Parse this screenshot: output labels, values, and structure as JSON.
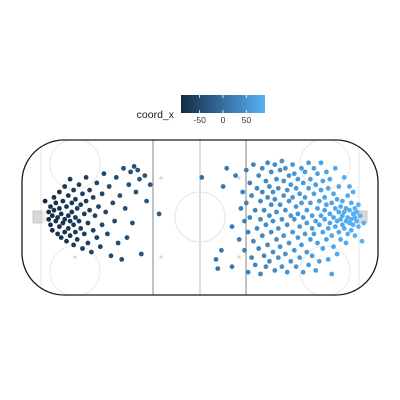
{
  "chart_data": {
    "type": "scatter",
    "title": "",
    "xlabel": "",
    "ylabel": "",
    "background": "hockey-rink",
    "xlim": [
      -100,
      100
    ],
    "ylim": [
      -42.5,
      42.5
    ],
    "legend": {
      "title": "coord_x",
      "position": "top",
      "ticks": [
        -50,
        0,
        50
      ],
      "range": [
        -90,
        90
      ],
      "color_low": "#132B43",
      "color_high": "#56B1F7"
    },
    "series": [
      {
        "points": [
          [
            -87,
            9
          ],
          [
            -85,
            3
          ],
          [
            -85,
            -1
          ],
          [
            -84,
            6
          ],
          [
            -84,
            -4
          ],
          [
            -83,
            1
          ],
          [
            -83,
            -7
          ],
          [
            -82,
            11
          ],
          [
            -82,
            4
          ],
          [
            -81,
            -2
          ],
          [
            -81,
            8
          ],
          [
            -80,
            -9
          ],
          [
            -80,
            0
          ],
          [
            -79,
            14
          ],
          [
            -79,
            5
          ],
          [
            -79,
            -5
          ],
          [
            -78,
            -11
          ],
          [
            -78,
            2
          ],
          [
            -77,
            9
          ],
          [
            -77,
            -3
          ],
          [
            -76,
            17
          ],
          [
            -76,
            -1
          ],
          [
            -76,
            -8
          ],
          [
            -75,
            6
          ],
          [
            -75,
            -13
          ],
          [
            -74,
            12
          ],
          [
            -74,
            1
          ],
          [
            -74,
            -6
          ],
          [
            -73,
            21
          ],
          [
            -73,
            -2
          ],
          [
            -73,
            -10
          ],
          [
            -72,
            8
          ],
          [
            -72,
            3
          ],
          [
            -71,
            -4
          ],
          [
            -71,
            15
          ],
          [
            -71,
            -15
          ],
          [
            -70,
            0
          ],
          [
            -70,
            10
          ],
          [
            -70,
            -8
          ],
          [
            -69,
            5
          ],
          [
            -69,
            -12
          ],
          [
            -68,
            18
          ],
          [
            -68,
            -2
          ],
          [
            -67,
            7
          ],
          [
            -67,
            -6
          ],
          [
            -66,
            13
          ],
          [
            -66,
            -17
          ],
          [
            -65,
            2
          ],
          [
            -65,
            -9
          ],
          [
            -64,
            22
          ],
          [
            -64,
            9
          ],
          [
            -63,
            -3
          ],
          [
            -63,
            -14
          ],
          [
            -62,
            15
          ],
          [
            -62,
            4
          ],
          [
            -61,
            -19
          ],
          [
            -60,
            11
          ],
          [
            -60,
            -7
          ],
          [
            -59,
            1
          ],
          [
            -58,
            19
          ],
          [
            -58,
            -11
          ],
          [
            -57,
            6
          ],
          [
            -56,
            -16
          ],
          [
            -55,
            13
          ],
          [
            -55,
            -4
          ],
          [
            -54,
            24
          ],
          [
            -53,
            3
          ],
          [
            -52,
            -9
          ],
          [
            -51,
            17
          ],
          [
            -50,
            -21
          ],
          [
            -49,
            8
          ],
          [
            -48,
            -2
          ],
          [
            -47,
            22
          ],
          [
            -46,
            -14
          ],
          [
            -45,
            12
          ],
          [
            -44,
            -23
          ],
          [
            -43,
            27
          ],
          [
            -42,
            5
          ],
          [
            -41,
            -11
          ],
          [
            -40,
            18
          ],
          [
            -39,
            25
          ],
          [
            -38,
            -3
          ],
          [
            -37,
            28
          ],
          [
            -36,
            14
          ],
          [
            -35,
            26
          ],
          [
            -34,
            21
          ],
          [
            -33,
            -20
          ],
          [
            -31,
            23
          ],
          [
            -30,
            9
          ],
          [
            -28,
            18
          ],
          [
            -23,
            2
          ],
          [
            1,
            22
          ],
          [
            9,
            -23
          ],
          [
            10,
            -28
          ],
          [
            12,
            -18
          ],
          [
            13,
            17
          ],
          [
            15,
            27
          ],
          [
            18,
            -5
          ],
          [
            18,
            -27
          ],
          [
            20,
            23
          ],
          [
            22,
            -12
          ],
          [
            23,
            5
          ],
          [
            24,
            14
          ],
          [
            25,
            -2
          ],
          [
            25,
            -18
          ],
          [
            26,
            26
          ],
          [
            26,
            8
          ],
          [
            27,
            -30
          ],
          [
            27,
            -8
          ],
          [
            28,
            19
          ],
          [
            28,
            0
          ],
          [
            29,
            -22
          ],
          [
            29,
            12
          ],
          [
            30,
            -13
          ],
          [
            30,
            29
          ],
          [
            31,
            4
          ],
          [
            31,
            -26
          ],
          [
            32,
            16
          ],
          [
            32,
            -6
          ],
          [
            33,
            23
          ],
          [
            33,
            -17
          ],
          [
            34,
            9
          ],
          [
            34,
            -1
          ],
          [
            34,
            -31
          ],
          [
            35,
            27
          ],
          [
            35,
            14
          ],
          [
            35,
            -10
          ],
          [
            36,
            -21
          ],
          [
            36,
            4
          ],
          [
            37,
            20
          ],
          [
            37,
            -4
          ],
          [
            37,
            -27
          ],
          [
            38,
            11
          ],
          [
            38,
            -15
          ],
          [
            38,
            30
          ],
          [
            39,
            1
          ],
          [
            39,
            -24
          ],
          [
            39,
            17
          ],
          [
            40,
            -8
          ],
          [
            40,
            25
          ],
          [
            40,
            7
          ],
          [
            41,
            -19
          ],
          [
            41,
            14
          ],
          [
            41,
            -2
          ],
          [
            42,
            29
          ],
          [
            42,
            -29
          ],
          [
            42,
            10
          ],
          [
            43,
            -12
          ],
          [
            43,
            21
          ],
          [
            43,
            3
          ],
          [
            44,
            -22
          ],
          [
            44,
            16
          ],
          [
            44,
            -6
          ],
          [
            45,
            26
          ],
          [
            45,
            -16
          ],
          [
            45,
            7
          ],
          [
            46,
            -1
          ],
          [
            46,
            31
          ],
          [
            46,
            -27
          ],
          [
            47,
            12
          ],
          [
            47,
            -10
          ],
          [
            47,
            20
          ],
          [
            48,
            -20
          ],
          [
            48,
            4
          ],
          [
            48,
            27
          ],
          [
            49,
            -4
          ],
          [
            49,
            15
          ],
          [
            49,
            -30
          ],
          [
            50,
            9
          ],
          [
            50,
            -14
          ],
          [
            50,
            23
          ],
          [
            51,
            -24
          ],
          [
            51,
            1
          ],
          [
            51,
            18
          ],
          [
            52,
            -8
          ],
          [
            52,
            29
          ],
          [
            52,
            11
          ],
          [
            53,
            -18
          ],
          [
            53,
            -1
          ],
          [
            53,
            24
          ],
          [
            54,
            6
          ],
          [
            54,
            -27
          ],
          [
            54,
            16
          ],
          [
            55,
            -11
          ],
          [
            55,
            21
          ],
          [
            55,
            2
          ],
          [
            56,
            -22
          ],
          [
            56,
            13
          ],
          [
            56,
            -5
          ],
          [
            57,
            27
          ],
          [
            57,
            8
          ],
          [
            57,
            -15
          ],
          [
            58,
            -30
          ],
          [
            58,
            19
          ],
          [
            58,
            0
          ],
          [
            59,
            -9
          ],
          [
            59,
            11
          ],
          [
            59,
            25
          ],
          [
            60,
            -19
          ],
          [
            60,
            4
          ],
          [
            60,
            -3
          ],
          [
            61,
            16
          ],
          [
            61,
            -26
          ],
          [
            61,
            30
          ],
          [
            62,
            -12
          ],
          [
            62,
            8
          ],
          [
            62,
            21
          ],
          [
            63,
            -6
          ],
          [
            63,
            1
          ],
          [
            63,
            -21
          ],
          [
            64,
            13
          ],
          [
            64,
            27
          ],
          [
            64,
            -9
          ],
          [
            65,
            -2
          ],
          [
            65,
            18
          ],
          [
            65,
            -29
          ],
          [
            66,
            5
          ],
          [
            66,
            -14
          ],
          [
            66,
            24
          ],
          [
            67,
            9
          ],
          [
            67,
            -4
          ],
          [
            67,
            -24
          ],
          [
            68,
            15
          ],
          [
            68,
            1
          ],
          [
            68,
            30
          ],
          [
            69,
            -8
          ],
          [
            69,
            20
          ],
          [
            69,
            -17
          ],
          [
            70,
            4
          ],
          [
            70,
            -1
          ],
          [
            70,
            11
          ],
          [
            71,
            -12
          ],
          [
            71,
            25
          ],
          [
            71,
            7
          ],
          [
            72,
            -6
          ],
          [
            72,
            -23
          ],
          [
            72,
            16
          ],
          [
            73,
            2
          ],
          [
            73,
            -3
          ],
          [
            73,
            21
          ],
          [
            74,
            -10
          ],
          [
            74,
            8
          ],
          [
            74,
            -31
          ],
          [
            75,
            0
          ],
          [
            75,
            13
          ],
          [
            75,
            -16
          ],
          [
            76,
            -5
          ],
          [
            76,
            5
          ],
          [
            76,
            27
          ],
          [
            77,
            -2
          ],
          [
            77,
            10
          ],
          [
            77,
            -20
          ],
          [
            78,
            3
          ],
          [
            78,
            -8
          ],
          [
            78,
            17
          ],
          [
            79,
            -1
          ],
          [
            79,
            6
          ],
          [
            79,
            -12
          ],
          [
            80,
            1
          ],
          [
            80,
            -4
          ],
          [
            80,
            9
          ],
          [
            81,
            -6
          ],
          [
            81,
            3
          ],
          [
            81,
            22
          ],
          [
            82,
            -2
          ],
          [
            82,
            5
          ],
          [
            82,
            -14
          ],
          [
            83,
            0
          ],
          [
            83,
            -9
          ],
          [
            83,
            12
          ],
          [
            84,
            -3
          ],
          [
            84,
            4
          ],
          [
            84,
            17
          ],
          [
            85,
            -1
          ],
          [
            85,
            -7
          ],
          [
            85,
            8
          ],
          [
            86,
            2
          ],
          [
            86,
            -4
          ],
          [
            86,
            14
          ],
          [
            87,
            0
          ],
          [
            87,
            -10
          ],
          [
            87,
            5
          ],
          [
            88,
            -2
          ],
          [
            88,
            3
          ],
          [
            89,
            -5
          ],
          [
            89,
            7
          ],
          [
            90,
            1
          ],
          [
            91,
            -13
          ],
          [
            92,
            -3
          ]
        ]
      }
    ]
  }
}
